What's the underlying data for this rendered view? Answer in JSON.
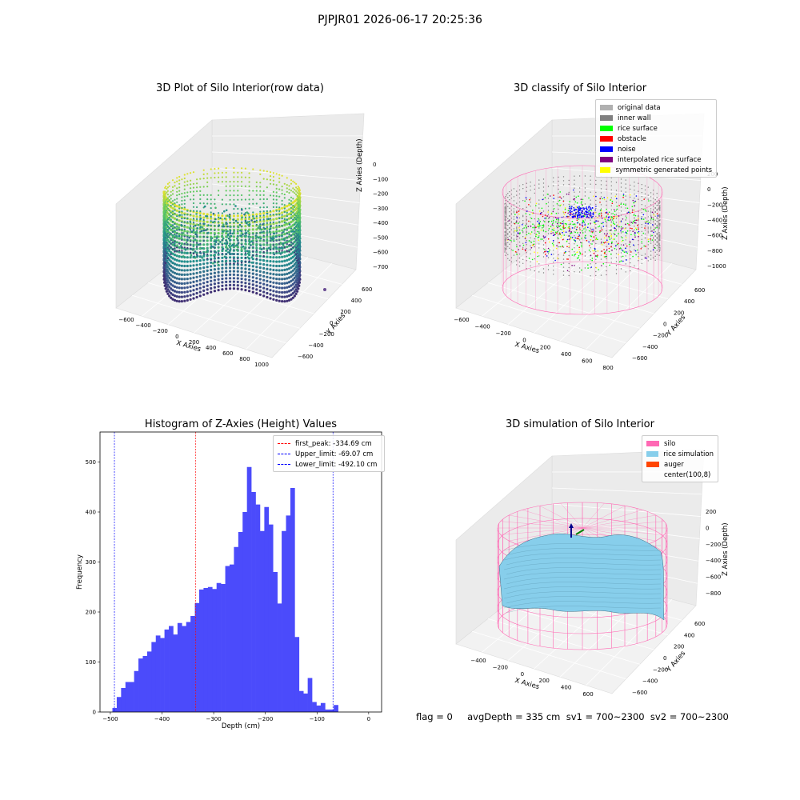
{
  "figure": {
    "suptitle": "PJPJR01 2026-06-17 20:25:36"
  },
  "footer": {
    "text": "flag = 0     avgDepth = 335 cm  sv1 = 700~2300  sv2 = 700~2300"
  },
  "colors": {
    "original": "#b0b0b0",
    "inner_wall": "#808080",
    "rice_surface": "#00ff00",
    "obstacle": "#ff0000",
    "noise": "#0000ff",
    "interpolated": "#800080",
    "symmetric": "#ffff00",
    "silo": "#ff69b4",
    "rice_sim": "#87ceeb",
    "auger": "#ff4500",
    "hist_bar": "#4b4bfb",
    "first_peak": "#ff0000",
    "limits": "#0000ff"
  },
  "panel1": {
    "title": "3D Plot of Silo Interior(row data)",
    "xlabel": "X Axies",
    "ylabel": "Y Axies",
    "zlabel": "Z Axies (Depth)",
    "xticks": [
      "−600",
      "−400",
      "−200",
      "0",
      "200",
      "400",
      "600",
      "800",
      "1000"
    ],
    "yticks": [
      "600",
      "400",
      "200",
      "0",
      "−200",
      "−400",
      "−600"
    ],
    "zticks": [
      "0",
      "−100",
      "−200",
      "−300",
      "−400",
      "−500",
      "−600",
      "−700"
    ]
  },
  "panel2": {
    "title": "3D classify of Silo Interior",
    "xlabel": "X Axies",
    "ylabel": "Y Axies",
    "zlabel": "Z Axies (Depth)",
    "xticks": [
      "−600",
      "−400",
      "−200",
      "0",
      "200",
      "400",
      "600",
      "800"
    ],
    "yticks": [
      "600",
      "400",
      "200",
      "0",
      "−200",
      "−400",
      "−600"
    ],
    "zticks": [
      "200",
      "0",
      "−200",
      "−400",
      "−600",
      "−800",
      "−1000"
    ],
    "legend": [
      {
        "label": "original data",
        "color": "#b0b0b0"
      },
      {
        "label": "inner wall",
        "color": "#808080"
      },
      {
        "label": "rice surface",
        "color": "#00ff00"
      },
      {
        "label": "obstacle",
        "color": "#ff0000"
      },
      {
        "label": "noise",
        "color": "#0000ff"
      },
      {
        "label": "interpolated rice surface",
        "color": "#800080"
      },
      {
        "label": "symmetric generated points",
        "color": "#ffff00"
      }
    ]
  },
  "panel4": {
    "title": "3D simulation of Silo Interior",
    "xlabel": "X Axies",
    "ylabel": "Y Axies",
    "zlabel": "Z Axies (Depth)",
    "xticks": [
      "−400",
      "−200",
      "0",
      "200",
      "400",
      "600"
    ],
    "yticks": [
      "600",
      "400",
      "200",
      "0",
      "−200",
      "−400",
      "−600"
    ],
    "zticks": [
      "200",
      "0",
      "−200",
      "−400",
      "−600",
      "−800"
    ],
    "legend": [
      {
        "label": "silo",
        "color": "#ff69b4"
      },
      {
        "label": "rice simulation",
        "color": "#87ceeb"
      },
      {
        "label": "auger",
        "color": "#ff4500"
      },
      {
        "label": "center(100,8)",
        "color": ""
      }
    ]
  },
  "chart_data": {
    "type": "bar",
    "title": "Histogram of Z-Axies (Height) Values",
    "xlabel": "Depth (cm)",
    "ylabel": "Frequency",
    "xlim": [
      -520,
      25
    ],
    "ylim": [
      0,
      560
    ],
    "xticks": [
      -500,
      -400,
      -300,
      -200,
      -100,
      0
    ],
    "yticks": [
      0,
      100,
      200,
      300,
      400,
      500
    ],
    "bin_width": 8.4,
    "bin_start": -496,
    "values": [
      8,
      30,
      48,
      60,
      60,
      82,
      107,
      112,
      121,
      140,
      153,
      148,
      165,
      172,
      155,
      178,
      172,
      180,
      192,
      218,
      245,
      248,
      250,
      246,
      258,
      256,
      292,
      295,
      330,
      360,
      400,
      490,
      440,
      415,
      362,
      410,
      375,
      280,
      217,
      362,
      393,
      448,
      150,
      42,
      37,
      68,
      20,
      13,
      18,
      5,
      5,
      14
    ],
    "lines": [
      {
        "name": "first_peak: -334.69 cm",
        "value": -334.69,
        "color": "#ff0000"
      },
      {
        "name": "Upper_limit: -69.07 cm",
        "value": -69.07,
        "color": "#0000ff"
      },
      {
        "name": "Lower_limit: -492.10 cm",
        "value": -492.1,
        "color": "#0000ff"
      }
    ]
  }
}
